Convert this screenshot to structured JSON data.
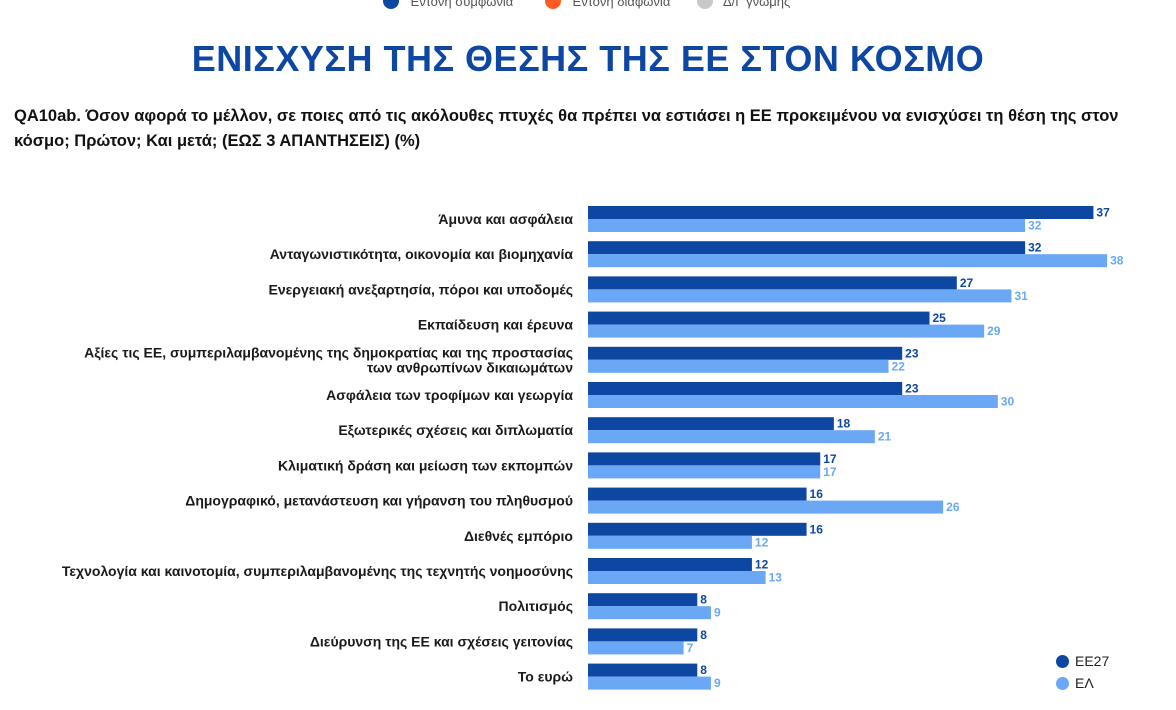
{
  "top_legend": [
    {
      "label": "Έντονη συμφωνία",
      "color": "#0e47a1"
    },
    {
      "label": "Έντονη διαφωνία",
      "color": "#ff5a1f"
    },
    {
      "label": "Δ/Γ γνώμης",
      "color": "#c8c8c8"
    }
  ],
  "title": "ΕΝΙΣΧΥΣΗ ΤΗΣ ΘΕΣΗΣ ΤΗΣ ΕΕ ΣΤΟΝ ΚΟΣΜΟ",
  "question": "QA10ab. Όσον αφορά το μέλλον, σε ποιες από τις ακόλουθες πτυχές θα πρέπει να εστιάσει η ΕΕ προκειμένου να ενισχύσει τη θέση της στον κόσμο; Πρώτον; Και μετά; (ΕΩΣ 3 ΑΠΑΝΤΗΣΕΙΣ) (%)",
  "colors": {
    "eu27": "#0e47a1",
    "el": "#6aa8f5"
  },
  "chart_data": {
    "type": "bar",
    "orientation": "horizontal",
    "categories": [
      "Άμυνα και ασφάλεια",
      "Ανταγωνιστικότητα, οικονομία και βιομηχανία",
      "Ενεργειακή ανεξαρτησία, πόροι και υποδομές",
      "Εκπαίδευση και έρευνα",
      "Αξίες τις ΕΕ, συμπεριλαμβανομένης της δημοκρατίας και της προστασίας\nτων ανθρωπίνων δικαιωμάτων",
      "Ασφάλεια των τροφίμων και γεωργία",
      "Εξωτερικές σχέσεις και διπλωματία",
      "Κλιματική δράση και μείωση των εκπομπών",
      "Δημογραφικό, μετανάστευση και γήρανση του πληθυσμού",
      "Διεθνές εμπόριο",
      "Τεχνολογία και καινοτομία, συμπεριλαμβανομένης της τεχνητής νοημοσύνης",
      "Πολιτισμός",
      "Διεύρυνση της ΕΕ και σχέσεις γειτονίας",
      "Το ευρώ"
    ],
    "series": [
      {
        "name": "ΕΕ27",
        "values": [
          37,
          32,
          27,
          25,
          23,
          23,
          18,
          17,
          16,
          16,
          12,
          8,
          8,
          8
        ]
      },
      {
        "name": "ΕΛ",
        "values": [
          32,
          38,
          31,
          29,
          22,
          30,
          21,
          17,
          26,
          12,
          13,
          9,
          7,
          9
        ]
      }
    ],
    "xlim": [
      0,
      40
    ],
    "legend": "bottom-right"
  }
}
